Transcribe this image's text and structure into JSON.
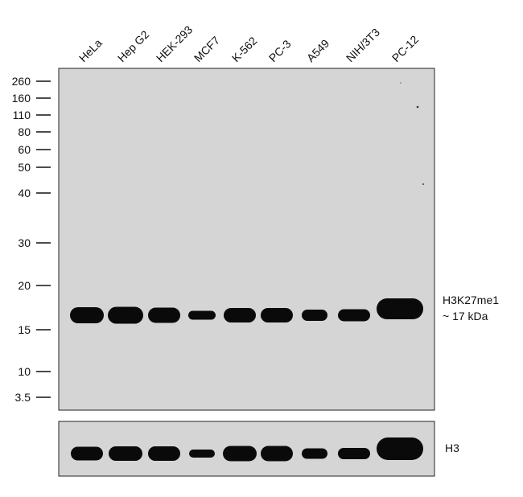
{
  "lanes": [
    "HeLa",
    "Hep G2",
    "HEK-293",
    "MCF7",
    "K-562",
    "PC-3",
    "A549",
    "NIH/3T3",
    "PC-12"
  ],
  "markers": [
    "260",
    "160",
    "110",
    "80",
    "60",
    "50",
    "40",
    "30",
    "20",
    "15",
    "10",
    "3.5"
  ],
  "main_blot": {
    "label": "H3K27me1",
    "size": "~ 17 kDa"
  },
  "loading_blot": {
    "label": "H3"
  }
}
